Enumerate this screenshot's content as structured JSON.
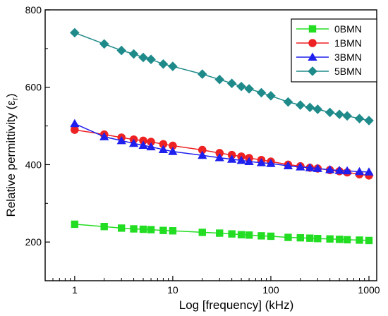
{
  "chart_data": {
    "type": "line",
    "x_scale": "log",
    "xlabel": "Log [frequency] (kHz)",
    "ylabel_main": "Relative permittivity (ε",
    "ylabel_sub": "r",
    "ylabel_close": ")",
    "xlim": [
      0.5,
      1200
    ],
    "ylim": [
      100,
      800
    ],
    "x_ticks": [
      1,
      10,
      100,
      1000
    ],
    "x_tick_labels": [
      "1",
      "10",
      "100",
      "1000"
    ],
    "y_ticks": [
      200,
      400,
      600,
      800
    ],
    "y_tick_labels": [
      "200",
      "400",
      "600",
      "800"
    ],
    "legend_position": "top-right",
    "x": [
      1,
      2,
      3,
      4,
      5,
      6,
      8,
      10,
      20,
      30,
      40,
      50,
      60,
      80,
      100,
      150,
      200,
      250,
      300,
      400,
      500,
      600,
      800,
      1000
    ],
    "series": [
      {
        "name": "0BMN",
        "color": "#22dd22",
        "marker": "square",
        "values": [
          246,
          240,
          236,
          234,
          233,
          232,
          230,
          229,
          225,
          223,
          221,
          219,
          218,
          216,
          215,
          212,
          211,
          210,
          209,
          208,
          207,
          206,
          205,
          204
        ]
      },
      {
        "name": "1BMN",
        "color": "#ee2222",
        "marker": "circle",
        "values": [
          490,
          478,
          470,
          465,
          462,
          459,
          453,
          449,
          438,
          430,
          425,
          421,
          417,
          412,
          408,
          400,
          396,
          392,
          390,
          386,
          383,
          380,
          375,
          372
        ]
      },
      {
        "name": "3BMN",
        "color": "#1f1fee",
        "marker": "triangle",
        "values": [
          506,
          472,
          462,
          455,
          450,
          446,
          439,
          434,
          424,
          418,
          414,
          411,
          408,
          405,
          403,
          397,
          394,
          392,
          390,
          387,
          385,
          384,
          382,
          381
        ]
      },
      {
        "name": "5BMN",
        "color": "#1f8a8a",
        "marker": "diamond",
        "values": [
          741,
          712,
          695,
          686,
          677,
          672,
          660,
          654,
          634,
          620,
          610,
          602,
          596,
          586,
          578,
          562,
          554,
          548,
          543,
          535,
          530,
          526,
          519,
          514
        ]
      }
    ]
  }
}
